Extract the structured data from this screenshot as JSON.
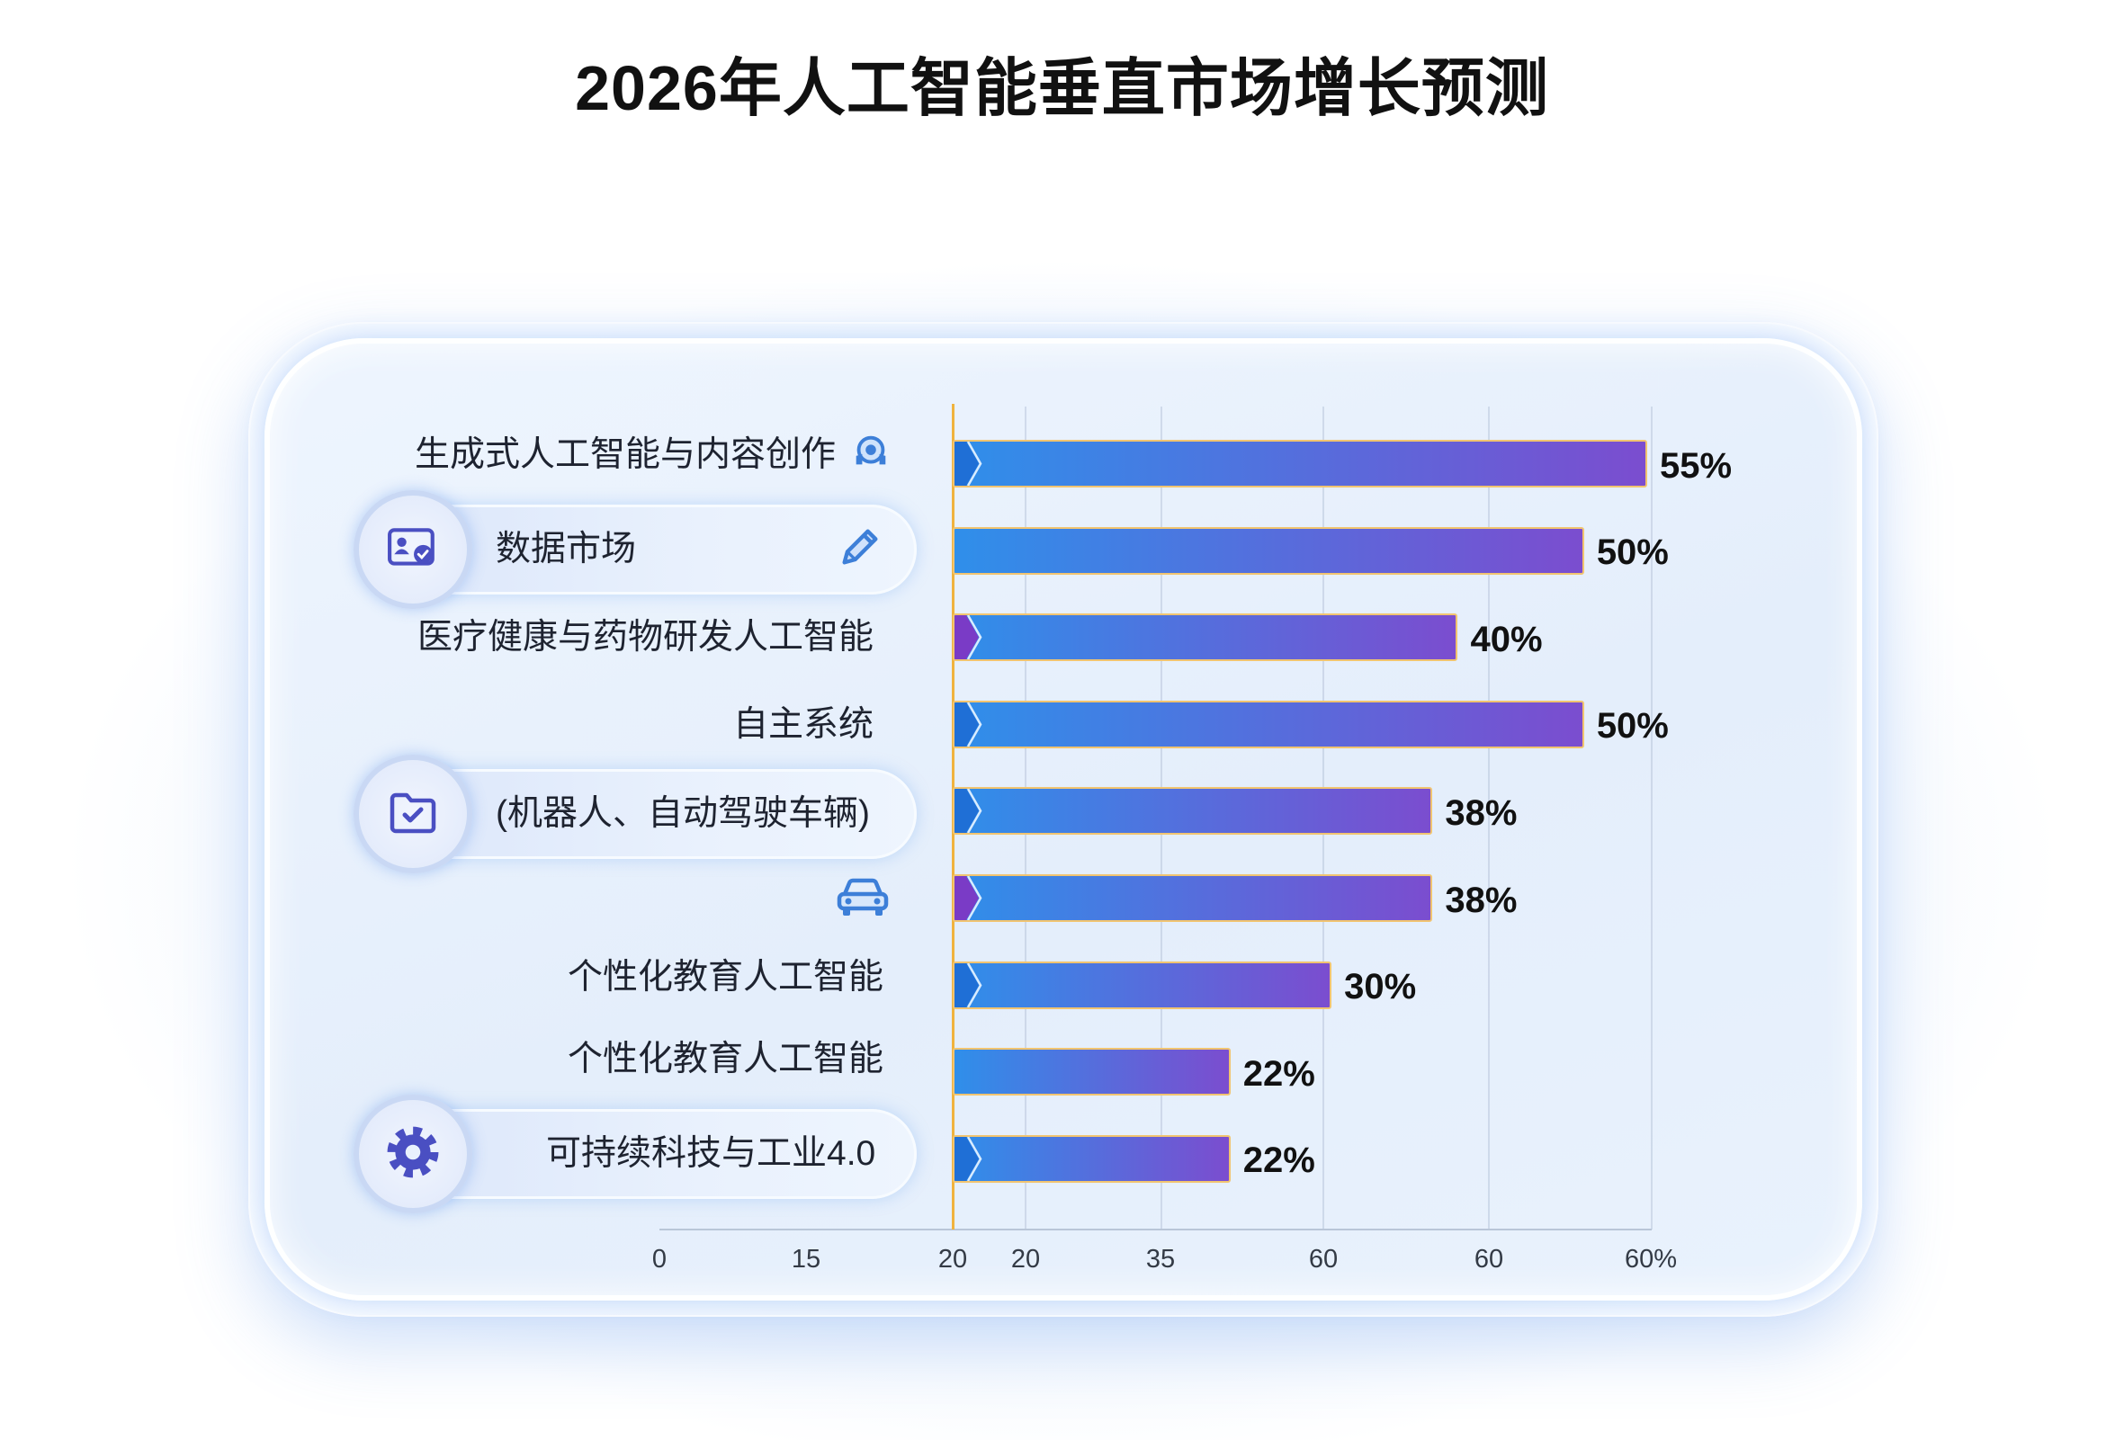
{
  "chart_data": {
    "type": "bar",
    "orientation": "horizontal",
    "title": "2026年人工智能垂直市场增长预测",
    "categories": [
      "生成式人工智能与内容创作",
      "数据市场",
      "医疗健康与药物研发人工智能",
      "自主系统",
      "(机器人、自动驾驶车辆)",
      "",
      "个性化教育人工智能",
      "个性化教育人工智能",
      "可持续科技与工业4.0"
    ],
    "values": [
      55,
      50,
      40,
      50,
      38,
      38,
      30,
      22,
      22
    ],
    "data_labels": [
      "55%",
      "50%",
      "40%",
      "50%",
      "38%",
      "38%",
      "30%",
      "22%",
      "22%"
    ],
    "unit": "%",
    "x_ticks": [
      "0",
      "15",
      "20",
      "20",
      "35",
      "60",
      "60",
      "60%"
    ],
    "xlabel": "",
    "ylabel": "",
    "grid": "vertical",
    "legend": "none"
  },
  "icons": {
    "generative_ai": "headset-icon",
    "data_market_left": "id-card-icon",
    "data_market_right": "pencil-icon",
    "autonomous_left": "folder-check-icon",
    "autonomous_right": "car-icon",
    "sustainable_left": "gear-icon"
  },
  "colors": {
    "title": "#111111",
    "bar_start": "#2f8fea",
    "bar_end": "#7b4dcf",
    "bar_border": "#f1c470",
    "baseline": "#f0b33e",
    "icon_indigo": "#4a4fc2",
    "icon_blue": "#3d7fd8",
    "chevrons": [
      "#1f6fd6",
      "",
      "#7a3bc6",
      "#1f6fd6",
      "#1f6fd6",
      "#7a3bc6",
      "#1f6fd6",
      "",
      "#1f6fd6"
    ]
  }
}
